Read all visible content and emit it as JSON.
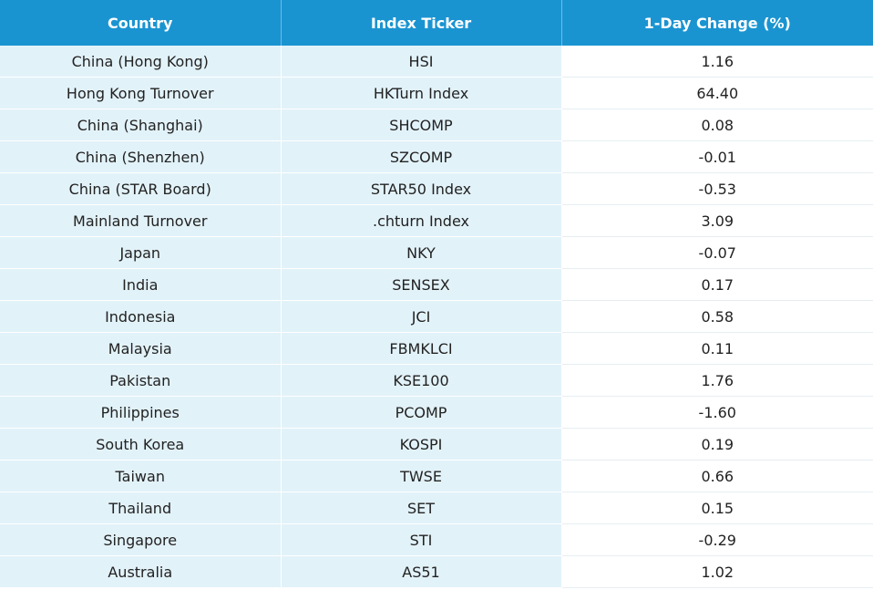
{
  "table": {
    "headers": [
      "Country",
      "Index Ticker",
      "1-Day Change (%)"
    ],
    "rows": [
      {
        "country": "China (Hong Kong)",
        "ticker": "HSI",
        "change": "1.16"
      },
      {
        "country": "Hong Kong Turnover",
        "ticker": "HKTurn Index",
        "change": "64.40"
      },
      {
        "country": "China (Shanghai)",
        "ticker": "SHCOMP",
        "change": "0.08"
      },
      {
        "country": "China (Shenzhen)",
        "ticker": "SZCOMP",
        "change": "-0.01"
      },
      {
        "country": "China (STAR Board)",
        "ticker": "STAR50 Index",
        "change": "-0.53"
      },
      {
        "country": "Mainland Turnover",
        "ticker": ".chturn Index",
        "change": "3.09"
      },
      {
        "country": "Japan",
        "ticker": "NKY",
        "change": "-0.07"
      },
      {
        "country": "India",
        "ticker": "SENSEX",
        "change": "0.17"
      },
      {
        "country": "Indonesia",
        "ticker": "JCI",
        "change": "0.58"
      },
      {
        "country": "Malaysia",
        "ticker": "FBMKLCI",
        "change": "0.11"
      },
      {
        "country": "Pakistan",
        "ticker": "KSE100",
        "change": "1.76"
      },
      {
        "country": "Philippines",
        "ticker": "PCOMP",
        "change": "-1.60"
      },
      {
        "country": "South Korea",
        "ticker": "KOSPI",
        "change": "0.19"
      },
      {
        "country": "Taiwan",
        "ticker": "TWSE",
        "change": "0.66"
      },
      {
        "country": "Thailand",
        "ticker": "SET",
        "change": "0.15"
      },
      {
        "country": "Singapore",
        "ticker": "STI",
        "change": "-0.29"
      },
      {
        "country": "Australia",
        "ticker": "AS51",
        "change": "1.02"
      }
    ]
  },
  "colors": {
    "header_bg": "#1a94d1",
    "header_text": "#ffffff",
    "shaded_cell_bg": "#e2f2f9",
    "plain_cell_bg": "#ffffff"
  }
}
